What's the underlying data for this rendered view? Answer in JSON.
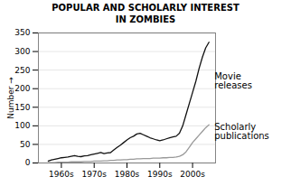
{
  "chart_data": {
    "type": "line",
    "title": "POPULAR AND SCHOLARLY INTEREST\nIN ZOMBIES",
    "ylabel": "Number",
    "x": [
      1960,
      1961,
      1962,
      1963,
      1964,
      1965,
      1966,
      1967,
      1968,
      1969,
      1970,
      1971,
      1972,
      1973,
      1974,
      1975,
      1976,
      1977,
      1978,
      1979,
      1980,
      1981,
      1982,
      1983,
      1984,
      1985,
      1986,
      1987,
      1988,
      1989,
      1990,
      1991,
      1992,
      1993,
      1994,
      1995,
      1996,
      1997,
      1998,
      1999,
      2000,
      2001,
      2002,
      2003,
      2004,
      2005,
      2006,
      2007,
      2008,
      2009
    ],
    "series": [
      {
        "color": "#111111",
        "values": [
          5,
          8,
          10,
          12,
          14,
          15,
          16,
          18,
          20,
          18,
          17,
          19,
          20,
          22,
          24,
          26,
          28,
          25,
          27,
          28,
          35,
          42,
          48,
          55,
          62,
          68,
          72,
          78,
          80,
          76,
          72,
          68,
          65,
          62,
          60,
          62,
          65,
          68,
          70,
          72,
          80,
          100,
          130,
          160,
          190,
          220,
          255,
          285,
          310,
          325
        ]
      },
      {
        "color": "#999999",
        "values": [
          1,
          1,
          1,
          2,
          2,
          2,
          2,
          3,
          3,
          3,
          3,
          4,
          4,
          4,
          5,
          5,
          5,
          6,
          6,
          7,
          7,
          8,
          8,
          9,
          9,
          10,
          10,
          11,
          11,
          12,
          12,
          12,
          13,
          13,
          13,
          14,
          14,
          15,
          15,
          16,
          18,
          22,
          30,
          42,
          55,
          65,
          75,
          85,
          95,
          103
        ]
      }
    ],
    "xlim": [
      1957,
      2011
    ],
    "xticks": [
      {
        "value": 1964,
        "label": "1960s"
      },
      {
        "value": 1974,
        "label": "1970s"
      },
      {
        "value": 1984,
        "label": "1980s"
      },
      {
        "value": 1994,
        "label": "1990s"
      },
      {
        "value": 2004,
        "label": "2000s"
      }
    ],
    "ylim": [
      0,
      350
    ],
    "yticks": [
      0,
      50,
      100,
      150,
      200,
      250,
      300,
      350
    ],
    "grid": true,
    "annotations": [
      {
        "text": "Movie\nreleases",
        "x": 2009,
        "y": 220
      },
      {
        "text": "Scholarly\npublications",
        "x": 2009,
        "y": 85
      }
    ]
  }
}
